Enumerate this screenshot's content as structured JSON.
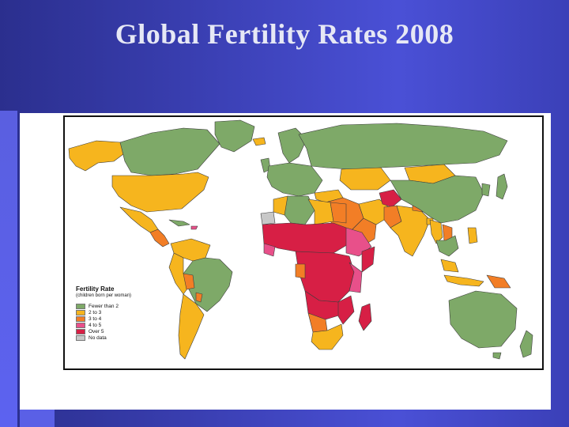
{
  "slide": {
    "title": "Global Fertility Rates 2008"
  },
  "legend": {
    "title": "Fertility Rate",
    "subtitle": "(children born per woman)",
    "items": [
      {
        "label": "Fewer than 2",
        "color": "#7ea968"
      },
      {
        "label": "2 to 3",
        "color": "#f6b51e"
      },
      {
        "label": "3 to 4",
        "color": "#f27e26"
      },
      {
        "label": "4 to 5",
        "color": "#e8508a"
      },
      {
        "label": "Over 5",
        "color": "#d71f45"
      },
      {
        "label": "No data",
        "color": "#c8c8c8"
      }
    ]
  },
  "colors": {
    "ocean": "#ffffff",
    "border": "#3c3c3c",
    "background_left": "#2b2f8e",
    "background_right": "#4a50d6"
  }
}
